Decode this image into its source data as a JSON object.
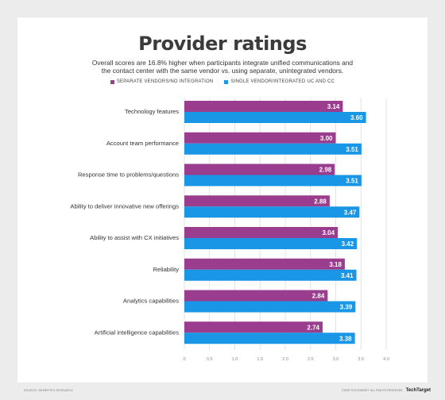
{
  "title": "Provider ratings",
  "subtitle": [
    "Overall scores are 16.8% higher when participants integrate unified communications and",
    "the contact center with the same vendor vs. using separate, unintegrated vendors."
  ],
  "footer": {
    "source": "SOURCE: NEMERTES RESEARCH",
    "copyright": "©2023 TECHTARGET. ALL RIGHTS RESERVED",
    "logo": "TechTarget"
  },
  "colors": {
    "separate": "#9b3d8e",
    "single": "#1a96e6",
    "grid": "#dcdcdc"
  },
  "chart_data": {
    "type": "bar",
    "orientation": "horizontal",
    "categories": [
      "Technology features",
      "Account team performance",
      "Response time to problems/questions",
      "Ability to deliver innovative new offerings",
      "Ability to assist with CX initiatives",
      "Reliability",
      "Analytics capabilities",
      "Artificial intelligence capabilities"
    ],
    "series": [
      {
        "name": "SEPARATE VENDORS/NO INTEGRATION",
        "values": [
          3.14,
          3.0,
          2.98,
          2.88,
          3.04,
          3.18,
          2.84,
          2.74
        ],
        "labels": [
          "3.14",
          "3.00",
          "2.98",
          "2.88",
          "3.04",
          "3.18",
          "2.84",
          "2.74"
        ]
      },
      {
        "name": "SINGLE VENDOR/INTEGRATED UC AND CC",
        "values": [
          3.6,
          3.51,
          3.51,
          3.47,
          3.42,
          3.41,
          3.39,
          3.38
        ],
        "labels": [
          "3.60",
          "3.51",
          "3.51",
          "3.47",
          "3.42",
          "3.41",
          "3.39",
          "3.38"
        ]
      }
    ],
    "xlim": [
      0,
      4.0
    ],
    "xticks": [
      "0",
      "0.5",
      "1.0",
      "1.5",
      "2.0",
      "2.5",
      "3.0",
      "3.5",
      "4.0"
    ],
    "grid": true,
    "legend": "top-center"
  }
}
